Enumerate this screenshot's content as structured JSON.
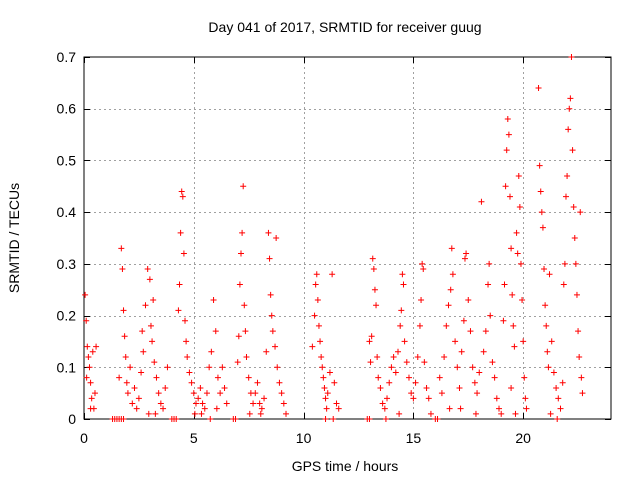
{
  "chart_data": {
    "type": "scatter",
    "title": "Day 041 of 2017, SRMTID for receiver guug",
    "xlabel": "GPS time / hours",
    "ylabel": "SRMTID / TECUs",
    "xlim": [
      0,
      24
    ],
    "ylim": [
      0,
      0.7
    ],
    "xticks": [
      0,
      5,
      10,
      15,
      20
    ],
    "xtick_labels": [
      "0",
      "5",
      "10",
      "15",
      "20"
    ],
    "yticks": [
      0,
      0.1,
      0.2,
      0.3,
      0.4,
      0.5,
      0.6,
      0.7
    ],
    "ytick_labels": [
      "0",
      "0.1",
      "0.2",
      "0.3",
      "0.4",
      "0.5",
      "0.6",
      "0.7"
    ],
    "grid": true,
    "marker": "+",
    "color": "#ff0000",
    "series": [
      {
        "name": "SRMTID",
        "points": [
          [
            0.05,
            0.24
          ],
          [
            0.1,
            0.19
          ],
          [
            0.15,
            0.14
          ],
          [
            0.2,
            0.12
          ],
          [
            0.25,
            0.1
          ],
          [
            0.3,
            0.07
          ],
          [
            0.35,
            0.04
          ],
          [
            0.4,
            0.13
          ],
          [
            0.45,
            0.02
          ],
          [
            0.5,
            0.05
          ],
          [
            0.55,
            0.14
          ],
          [
            0.3,
            0.02
          ],
          [
            0.12,
            0.08
          ],
          [
            1.3,
            0.0
          ],
          [
            1.4,
            0.0
          ],
          [
            1.5,
            0.0
          ],
          [
            1.6,
            0.0
          ],
          [
            1.7,
            0.0
          ],
          [
            1.8,
            0.0
          ],
          [
            1.6,
            0.08
          ],
          [
            1.7,
            0.33
          ],
          [
            1.75,
            0.29
          ],
          [
            1.8,
            0.21
          ],
          [
            1.85,
            0.16
          ],
          [
            1.9,
            0.12
          ],
          [
            1.95,
            0.07
          ],
          [
            2.0,
            0.05
          ],
          [
            2.1,
            0.1
          ],
          [
            2.2,
            0.03
          ],
          [
            2.3,
            0.06
          ],
          [
            2.4,
            0.02
          ],
          [
            2.5,
            0.04
          ],
          [
            2.6,
            0.09
          ],
          [
            2.7,
            0.13
          ],
          [
            2.8,
            0.22
          ],
          [
            2.9,
            0.29
          ],
          [
            3.0,
            0.27
          ],
          [
            3.05,
            0.18
          ],
          [
            3.1,
            0.15
          ],
          [
            3.2,
            0.11
          ],
          [
            3.3,
            0.08
          ],
          [
            3.4,
            0.05
          ],
          [
            3.5,
            0.03
          ],
          [
            3.6,
            0.02
          ],
          [
            3.7,
            0.06
          ],
          [
            3.8,
            0.1
          ],
          [
            2.95,
            0.01
          ],
          [
            3.25,
            0.01
          ],
          [
            2.65,
            0.17
          ],
          [
            3.15,
            0.23
          ],
          [
            4.0,
            0.0
          ],
          [
            4.1,
            0.0
          ],
          [
            4.2,
            0.0
          ],
          [
            4.3,
            0.21
          ],
          [
            4.35,
            0.26
          ],
          [
            4.4,
            0.36
          ],
          [
            4.45,
            0.44
          ],
          [
            4.5,
            0.43
          ],
          [
            4.55,
            0.32
          ],
          [
            4.6,
            0.19
          ],
          [
            4.65,
            0.15
          ],
          [
            4.7,
            0.12
          ],
          [
            4.8,
            0.09
          ],
          [
            4.9,
            0.07
          ],
          [
            5.0,
            0.05
          ],
          [
            5.1,
            0.03
          ],
          [
            5.2,
            0.04
          ],
          [
            5.3,
            0.06
          ],
          [
            5.4,
            0.03
          ],
          [
            5.5,
            0.02
          ],
          [
            5.6,
            0.05
          ],
          [
            5.7,
            0.1
          ],
          [
            5.8,
            0.13
          ],
          [
            5.9,
            0.23
          ],
          [
            6.0,
            0.17
          ],
          [
            6.1,
            0.08
          ],
          [
            6.2,
            0.05
          ],
          [
            6.3,
            0.1
          ],
          [
            6.4,
            0.06
          ],
          [
            6.5,
            0.03
          ],
          [
            5.05,
            0.01
          ],
          [
            5.35,
            0.01
          ],
          [
            5.75,
            0.0
          ],
          [
            6.05,
            0.02
          ],
          [
            6.8,
            0.0
          ],
          [
            6.9,
            0.0
          ],
          [
            7.0,
            0.11
          ],
          [
            7.05,
            0.16
          ],
          [
            7.1,
            0.26
          ],
          [
            7.15,
            0.32
          ],
          [
            7.2,
            0.36
          ],
          [
            7.25,
            0.45
          ],
          [
            7.3,
            0.22
          ],
          [
            7.35,
            0.17
          ],
          [
            7.4,
            0.12
          ],
          [
            7.5,
            0.08
          ],
          [
            7.6,
            0.05
          ],
          [
            7.7,
            0.03
          ],
          [
            7.8,
            0.05
          ],
          [
            7.9,
            0.07
          ],
          [
            8.0,
            0.03
          ],
          [
            8.1,
            0.02
          ],
          [
            8.2,
            0.04
          ],
          [
            8.3,
            0.13
          ],
          [
            8.4,
            0.36
          ],
          [
            8.45,
            0.31
          ],
          [
            8.5,
            0.24
          ],
          [
            8.55,
            0.2
          ],
          [
            8.6,
            0.17
          ],
          [
            8.7,
            0.14
          ],
          [
            8.75,
            0.35
          ],
          [
            8.8,
            0.1
          ],
          [
            8.9,
            0.07
          ],
          [
            9.0,
            0.05
          ],
          [
            9.1,
            0.03
          ],
          [
            9.2,
            0.01
          ],
          [
            7.55,
            0.01
          ],
          [
            8.05,
            0.01
          ],
          [
            10.4,
            0.14
          ],
          [
            10.5,
            0.2
          ],
          [
            10.55,
            0.26
          ],
          [
            10.6,
            0.28
          ],
          [
            10.65,
            0.23
          ],
          [
            10.7,
            0.18
          ],
          [
            10.75,
            0.15
          ],
          [
            10.8,
            0.12
          ],
          [
            10.85,
            0.1
          ],
          [
            10.9,
            0.08
          ],
          [
            10.95,
            0.06
          ],
          [
            11.0,
            0.04
          ],
          [
            11.05,
            0.02
          ],
          [
            11.1,
            0.05
          ],
          [
            11.2,
            0.09
          ],
          [
            11.3,
            0.28
          ],
          [
            11.4,
            0.07
          ],
          [
            11.5,
            0.03
          ],
          [
            11.6,
            0.02
          ],
          [
            11.0,
            0.0
          ],
          [
            11.35,
            0.0
          ],
          [
            12.9,
            0.0
          ],
          [
            13.0,
            0.0
          ],
          [
            13.0,
            0.15
          ],
          [
            13.05,
            0.11
          ],
          [
            13.1,
            0.16
          ],
          [
            13.15,
            0.31
          ],
          [
            13.2,
            0.29
          ],
          [
            13.25,
            0.25
          ],
          [
            13.3,
            0.22
          ],
          [
            13.35,
            0.12
          ],
          [
            13.4,
            0.08
          ],
          [
            13.5,
            0.06
          ],
          [
            13.6,
            0.03
          ],
          [
            13.7,
            0.02
          ],
          [
            13.8,
            0.04
          ],
          [
            13.9,
            0.07
          ],
          [
            14.0,
            0.1
          ],
          [
            14.1,
            0.12
          ],
          [
            14.2,
            0.09
          ],
          [
            14.3,
            0.13
          ],
          [
            14.4,
            0.18
          ],
          [
            14.45,
            0.21
          ],
          [
            14.5,
            0.28
          ],
          [
            14.55,
            0.26
          ],
          [
            14.6,
            0.15
          ],
          [
            14.7,
            0.11
          ],
          [
            14.8,
            0.08
          ],
          [
            14.9,
            0.05
          ],
          [
            15.0,
            0.04
          ],
          [
            15.1,
            0.07
          ],
          [
            15.2,
            0.12
          ],
          [
            15.3,
            0.18
          ],
          [
            15.35,
            0.23
          ],
          [
            15.4,
            0.3
          ],
          [
            15.45,
            0.29
          ],
          [
            15.5,
            0.11
          ],
          [
            15.6,
            0.06
          ],
          [
            15.7,
            0.04
          ],
          [
            15.8,
            0.01
          ],
          [
            14.35,
            0.01
          ],
          [
            13.75,
            0.0
          ],
          [
            16.0,
            0.0
          ],
          [
            16.1,
            0.0
          ],
          [
            16.2,
            0.08
          ],
          [
            16.3,
            0.05
          ],
          [
            16.4,
            0.12
          ],
          [
            16.5,
            0.18
          ],
          [
            16.6,
            0.22
          ],
          [
            16.7,
            0.25
          ],
          [
            16.75,
            0.33
          ],
          [
            16.8,
            0.28
          ],
          [
            16.9,
            0.15
          ],
          [
            17.0,
            0.1
          ],
          [
            17.1,
            0.06
          ],
          [
            17.2,
            0.13
          ],
          [
            17.3,
            0.19
          ],
          [
            17.35,
            0.31
          ],
          [
            17.4,
            0.32
          ],
          [
            17.5,
            0.23
          ],
          [
            17.6,
            0.17
          ],
          [
            17.7,
            0.1
          ],
          [
            17.8,
            0.07
          ],
          [
            17.9,
            0.05
          ],
          [
            18.0,
            0.09
          ],
          [
            18.1,
            0.42
          ],
          [
            18.2,
            0.13
          ],
          [
            18.3,
            0.17
          ],
          [
            18.4,
            0.26
          ],
          [
            18.45,
            0.3
          ],
          [
            18.5,
            0.2
          ],
          [
            18.6,
            0.11
          ],
          [
            18.7,
            0.08
          ],
          [
            18.8,
            0.04
          ],
          [
            18.9,
            0.02
          ],
          [
            19.0,
            0.01
          ],
          [
            16.65,
            0.02
          ],
          [
            17.15,
            0.02
          ],
          [
            17.85,
            0.01
          ],
          [
            19.1,
            0.19
          ],
          [
            19.15,
            0.26
          ],
          [
            19.2,
            0.45
          ],
          [
            19.25,
            0.52
          ],
          [
            19.3,
            0.58
          ],
          [
            19.35,
            0.55
          ],
          [
            19.4,
            0.43
          ],
          [
            19.45,
            0.33
          ],
          [
            19.5,
            0.24
          ],
          [
            19.55,
            0.18
          ],
          [
            19.6,
            0.14
          ],
          [
            19.7,
            0.36
          ],
          [
            19.75,
            0.32
          ],
          [
            19.8,
            0.47
          ],
          [
            19.85,
            0.41
          ],
          [
            19.9,
            0.3
          ],
          [
            19.95,
            0.23
          ],
          [
            20.0,
            0.15
          ],
          [
            20.05,
            0.08
          ],
          [
            20.1,
            0.04
          ],
          [
            20.15,
            0.02
          ],
          [
            19.65,
            0.01
          ],
          [
            19.45,
            0.06
          ],
          [
            20.7,
            0.64
          ],
          [
            20.75,
            0.49
          ],
          [
            20.8,
            0.44
          ],
          [
            20.85,
            0.4
          ],
          [
            20.9,
            0.37
          ],
          [
            20.95,
            0.29
          ],
          [
            21.0,
            0.22
          ],
          [
            21.05,
            0.18
          ],
          [
            21.1,
            0.13
          ],
          [
            21.15,
            0.1
          ],
          [
            21.2,
            0.28
          ],
          [
            21.3,
            0.15
          ],
          [
            21.4,
            0.09
          ],
          [
            21.5,
            0.06
          ],
          [
            21.6,
            0.04
          ],
          [
            21.7,
            0.02
          ],
          [
            21.8,
            0.07
          ],
          [
            21.85,
            0.26
          ],
          [
            21.9,
            0.3
          ],
          [
            21.95,
            0.43
          ],
          [
            22.0,
            0.47
          ],
          [
            22.05,
            0.56
          ],
          [
            22.1,
            0.6
          ],
          [
            22.15,
            0.62
          ],
          [
            22.2,
            0.7
          ],
          [
            22.25,
            0.52
          ],
          [
            22.3,
            0.41
          ],
          [
            22.35,
            0.35
          ],
          [
            22.4,
            0.3
          ],
          [
            22.45,
            0.24
          ],
          [
            22.5,
            0.17
          ],
          [
            22.55,
            0.12
          ],
          [
            22.6,
            0.4
          ],
          [
            22.65,
            0.08
          ],
          [
            22.7,
            0.05
          ],
          [
            21.55,
            0.0
          ],
          [
            21.25,
            0.01
          ]
        ]
      }
    ]
  }
}
